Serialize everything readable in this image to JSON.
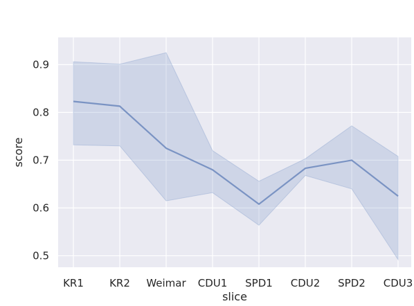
{
  "chart_data": {
    "type": "line",
    "title": "",
    "xlabel": "slice",
    "ylabel": "score",
    "categories": [
      "KR1",
      "KR2",
      "Weimar",
      "CDU1",
      "SPD1",
      "CDU2",
      "SPD2",
      "CDU3"
    ],
    "series": [
      {
        "mean": [
          0.823,
          0.813,
          0.725,
          0.68,
          0.608,
          0.683,
          0.7,
          0.625
        ],
        "upper": [
          0.906,
          0.901,
          0.925,
          0.72,
          0.656,
          0.703,
          0.772,
          0.708
        ],
        "lower": [
          0.732,
          0.73,
          0.615,
          0.632,
          0.564,
          0.668,
          0.64,
          0.492
        ]
      }
    ],
    "ylim": [
      0.476,
      0.957
    ],
    "yticks": [
      "0.5",
      "0.6",
      "0.7",
      "0.8",
      "0.9"
    ],
    "grid": true,
    "background_color": "#eaeaf2",
    "grid_color": "#ffffff",
    "line_color": "#7a93c3",
    "band_color": "#7b97c9"
  }
}
